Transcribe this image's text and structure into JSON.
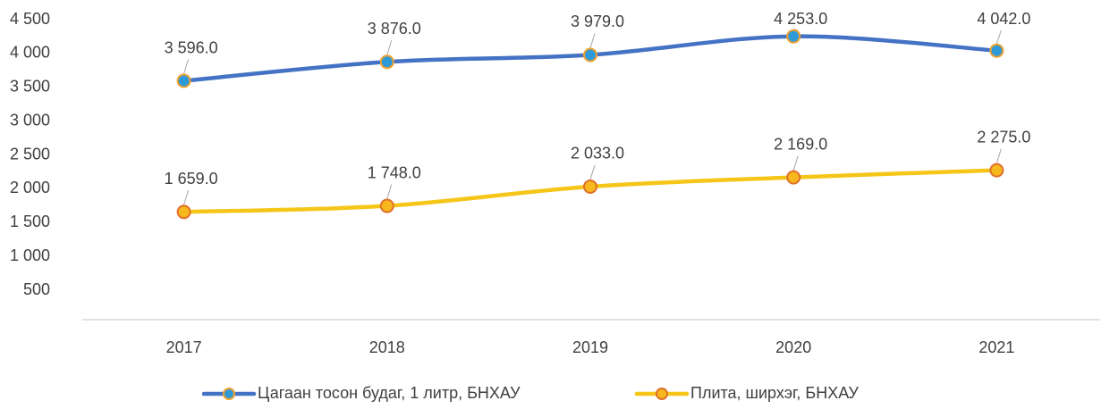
{
  "chart_data": {
    "type": "line",
    "categories": [
      "2017",
      "2018",
      "2019",
      "2020",
      "2021"
    ],
    "series": [
      {
        "name": "Цагаан тосон будаг, 1 литр, БНХАУ",
        "color": "#4472c4",
        "marker_fill": "#2e9ad8",
        "marker_stroke": "#f0a030",
        "values": [
          3596,
          3876,
          3979,
          4253,
          4042
        ],
        "value_labels": [
          "3 596.0",
          "3 876.0",
          "3 979.0",
          "4 253.0",
          "4 042.0"
        ]
      },
      {
        "name": "Плита, ширхэг, БНХАУ",
        "color": "#f5c518",
        "marker_fill": "#f6b81c",
        "marker_stroke": "#e0702a",
        "values": [
          1659,
          1748,
          2033,
          2169,
          2275
        ],
        "value_labels": [
          "1 659.0",
          "1 748.0",
          "2 033.0",
          "2 169.0",
          "2 275.0"
        ]
      }
    ],
    "ylim": [
      0,
      4500
    ],
    "yticks": [
      {
        "value": 500,
        "label": "500"
      },
      {
        "value": 1000,
        "label": "1 000"
      },
      {
        "value": 1500,
        "label": "1 500"
      },
      {
        "value": 2000,
        "label": "2 000"
      },
      {
        "value": 2500,
        "label": "2 500"
      },
      {
        "value": 3000,
        "label": "3 000"
      },
      {
        "value": 3500,
        "label": "3 500"
      },
      {
        "value": 4000,
        "label": "4 000"
      },
      {
        "value": 4500,
        "label": "4 500"
      }
    ],
    "grid": false,
    "legend": "bottom"
  }
}
